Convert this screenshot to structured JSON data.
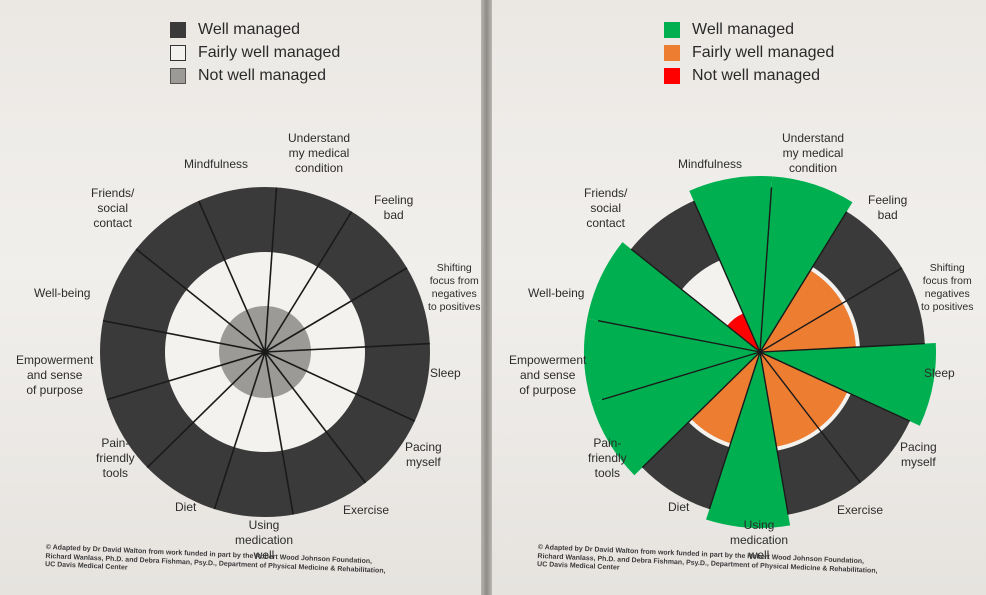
{
  "legend_left": [
    {
      "label": "Well managed",
      "color": "#3a3a3a"
    },
    {
      "label": "Fairly well managed",
      "color": "#f4f2ef"
    },
    {
      "label": "Not well managed",
      "color": "#9c9a97"
    }
  ],
  "legend_right": [
    {
      "label": "Well managed",
      "color": "#00b050"
    },
    {
      "label": "Fairly well managed",
      "color": "#ed7d31"
    },
    {
      "label": "Not well managed",
      "color": "#ff0000"
    }
  ],
  "segments": [
    "Understand my medical condition",
    "Feeling bad",
    "Shifting focus from negatives to positives",
    "Sleep",
    "Pacing myself",
    "Exercise",
    "Using medication well",
    "Diet",
    "Pain-friendly tools",
    "Empowerment and sense of purpose",
    "Well-being",
    "Friends/ social contact",
    "Mindfulness"
  ],
  "label_lines": {
    "understand": [
      "Understand",
      "my medical",
      "condition"
    ],
    "feeling": [
      "Feeling",
      "bad"
    ],
    "shifting": [
      "Shifting",
      "focus from",
      "negatives",
      "to positives"
    ],
    "sleep": [
      "Sleep"
    ],
    "pacing": [
      "Pacing",
      "myself"
    ],
    "exercise": [
      "Exercise"
    ],
    "medication": [
      "Using",
      "medication",
      "well"
    ],
    "diet": [
      "Diet"
    ],
    "pain": [
      "Pain-",
      "friendly",
      "tools"
    ],
    "empowerment": [
      "Empowerment",
      "and sense",
      "of purpose"
    ],
    "wellbeing": [
      "Well-being"
    ],
    "friends": [
      "Friends/",
      "social",
      "contact"
    ],
    "mindfulness": [
      "Mindfulness"
    ]
  },
  "right_levels": [
    "Well managed",
    "Fairly well managed",
    "Fairly well managed",
    "Well managed",
    "Fairly well managed",
    "Fairly well managed",
    "Well managed",
    "Fairly well managed",
    "Well managed",
    "Well managed",
    "Well managed",
    "Not well managed",
    "Well managed"
  ],
  "footnote": {
    "line1": "© Adapted by Dr David Walton from work funded in part by the Robert Wood Johnson Foundation,",
    "line2": "Richard Wanlass, Ph.D. and Debra Fishman, Psy.D., Department of Physical Medicine & Rehabilitation,",
    "line3": "UC Davis Medical Center"
  },
  "colors": {
    "page": "#eeebe7",
    "ring_dark": "#3a3a3a",
    "ring_light": "#f4f2ef",
    "center_gray": "#9c9a97",
    "divider": "#1a1a1a"
  }
}
